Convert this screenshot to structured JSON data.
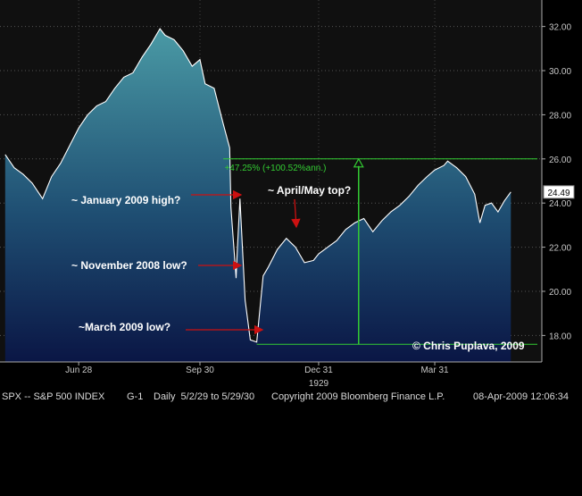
{
  "chart_data": {
    "type": "area",
    "ticker_label": "24.49",
    "ylim": [
      16.8,
      33.2
    ],
    "yticks": [
      "18.00",
      "20.00",
      "22.00",
      "24.00",
      "26.00",
      "28.00",
      "30.00",
      "32.00"
    ],
    "yticks_values": [
      18,
      20,
      22,
      24,
      26,
      28,
      30,
      32
    ],
    "xticks": [
      "Jun 28",
      "Sep 30",
      "Dec 31",
      "Mar 31"
    ],
    "x_year_label": "1929",
    "series": [
      {
        "x": [
          "1929-05-02",
          "1929-05-09",
          "1929-05-16",
          "1929-05-23",
          "1929-05-31",
          "1929-06-07",
          "1929-06-14",
          "1929-06-21",
          "1929-06-28",
          "1929-07-05",
          "1929-07-12",
          "1929-07-19",
          "1929-07-26",
          "1929-08-02",
          "1929-08-09",
          "1929-08-16",
          "1929-08-23",
          "1929-08-30",
          "1929-09-03",
          "1929-09-10",
          "1929-09-17",
          "1929-09-24",
          "1929-09-30",
          "1929-10-04",
          "1929-10-11",
          "1929-10-18",
          "1929-10-23",
          "1929-10-24",
          "1929-10-28",
          "1929-10-29",
          "1929-10-31",
          "1929-11-04",
          "1929-11-08",
          "1929-11-13",
          "1929-11-18",
          "1929-11-22",
          "1929-11-29",
          "1929-12-06",
          "1929-12-13",
          "1929-12-20",
          "1929-12-27",
          "1929-12-31",
          "1930-01-07",
          "1930-01-14",
          "1930-01-21",
          "1930-01-28",
          "1930-02-04",
          "1930-02-11",
          "1930-02-18",
          "1930-02-25",
          "1930-03-04",
          "1930-03-11",
          "1930-03-18",
          "1930-03-25",
          "1930-03-31",
          "1930-04-07",
          "1930-04-10",
          "1930-04-17",
          "1930-04-24",
          "1930-05-01",
          "1930-05-05",
          "1930-05-09",
          "1930-05-14",
          "1930-05-19",
          "1930-05-24",
          "1930-05-29"
        ],
        "values": [
          26.2,
          25.6,
          25.3,
          24.9,
          24.2,
          25.2,
          25.8,
          26.6,
          27.4,
          28.0,
          28.4,
          28.6,
          29.2,
          29.7,
          29.9,
          30.6,
          31.2,
          31.9,
          31.6,
          31.4,
          30.9,
          30.2,
          30.5,
          29.4,
          29.2,
          27.6,
          26.5,
          23.8,
          20.6,
          21.9,
          24.2,
          19.6,
          17.8,
          17.7,
          20.7,
          21.1,
          21.9,
          22.4,
          22.0,
          21.3,
          21.4,
          21.7,
          22.0,
          22.3,
          22.8,
          23.1,
          23.3,
          22.7,
          23.2,
          23.6,
          23.9,
          24.3,
          24.8,
          25.2,
          25.5,
          25.7,
          25.9,
          25.6,
          25.2,
          24.4,
          23.1,
          23.9,
          24.0,
          23.6,
          24.1,
          24.5
        ]
      }
    ],
    "projection": {
      "low_value": 17.6,
      "target_value": 26.0,
      "label": "+47.25% (+100.52%ann.)"
    },
    "annotations": [
      {
        "text": "~ January 2009 high?",
        "value": 23.9
      },
      {
        "text": "~ April/May top?",
        "value": 22.6
      },
      {
        "text": "~ November 2008 low?",
        "value": 20.6
      },
      {
        "text": "~March 2009 low?",
        "value": 17.7
      }
    ],
    "watermark": "© Chris Puplava, 2009"
  },
  "footer": {
    "ticker": "SPX -- S&P 500 INDEX",
    "page": "G-1",
    "range": "Daily  5/2/29 to 5/29/30",
    "copyright": "Copyright 2009 Bloomberg Finance L.P.",
    "timestamp": "08-Apr-2009 12:06:34"
  },
  "colors": {
    "area_top": "#3f8f9b",
    "area_bottom": "#0a1645",
    "line": "#ffffff",
    "green": "#33cc33",
    "arrow": "#cc1111"
  }
}
